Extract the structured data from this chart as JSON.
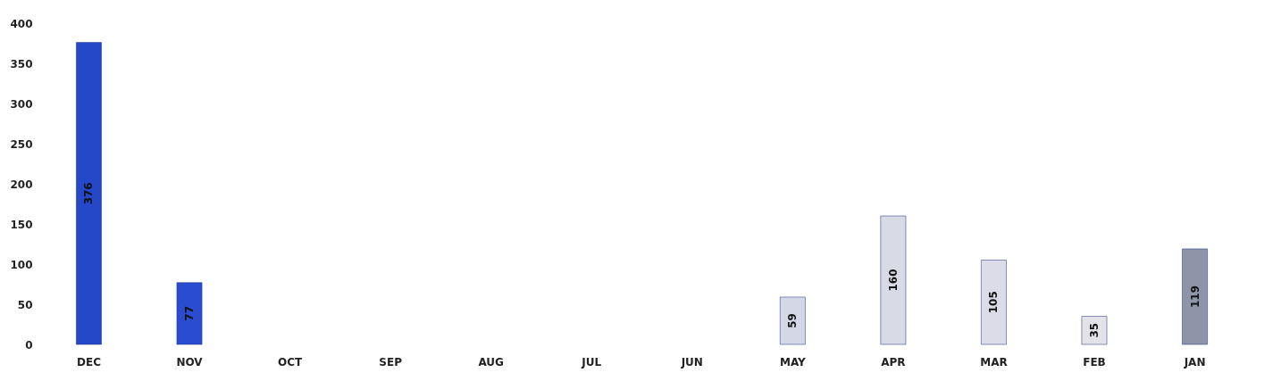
{
  "chart_data": {
    "type": "bar",
    "categories": [
      "DEC",
      "NOV",
      "OCT",
      "SEP",
      "AUG",
      "JUL",
      "JUN",
      "MAY",
      "APR",
      "MAR",
      "FEB",
      "JAN"
    ],
    "values": [
      376,
      77,
      null,
      null,
      null,
      null,
      null,
      59,
      160,
      105,
      35,
      119
    ],
    "colors": [
      "#2548c8",
      "#2a4cd0",
      "#cccccc",
      "#cccccc",
      "#cccccc",
      "#cccccc",
      "#cccccc",
      "#d4d8e6",
      "#d8dae6",
      "#dcdce8",
      "#e2e2e8",
      "#8e95a8"
    ],
    "ylim": [
      0,
      400
    ],
    "yticks": [
      0,
      50,
      100,
      150,
      200,
      250,
      300,
      350,
      400
    ],
    "data_labels": true,
    "grid": false
  }
}
